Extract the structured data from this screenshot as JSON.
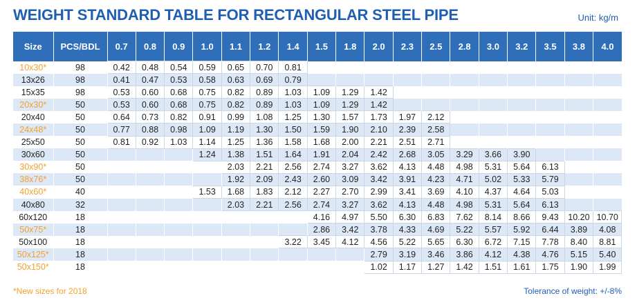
{
  "title": "WEIGHT STANDARD TABLE FOR RECTANGULAR STEEL PIPE",
  "unit": "Unit: kg/m",
  "columns": [
    "Size",
    "PCS/BDL",
    "0.7",
    "0.8",
    "0.9",
    "1.0",
    "1.1",
    "1.2",
    "1.4",
    "1.5",
    "1.8",
    "2.0",
    "2.3",
    "2.5",
    "2.8",
    "3.0",
    "3.2",
    "3.5",
    "3.8",
    "4.0"
  ],
  "rows": [
    {
      "size": "10x30*",
      "new": true,
      "pcs": "98",
      "w": [
        "0.42",
        "0.48",
        "0.54",
        "0.59",
        "0.65",
        "0.70",
        "0.81",
        "",
        "",
        "",
        "",
        "",
        "",
        "",
        "",
        "",
        "",
        ""
      ]
    },
    {
      "size": "13x26",
      "new": false,
      "pcs": "98",
      "w": [
        "0.41",
        "0.47",
        "0.53",
        "0.58",
        "0.63",
        "0.69",
        "0.79",
        "",
        "",
        "",
        "",
        "",
        "",
        "",
        "",
        "",
        "",
        ""
      ]
    },
    {
      "size": "15x35",
      "new": false,
      "pcs": "98",
      "w": [
        "0.53",
        "0.60",
        "0.68",
        "0.75",
        "0.82",
        "0.89",
        "1.03",
        "1.09",
        "1.29",
        "1.42",
        "",
        "",
        "",
        "",
        "",
        "",
        "",
        ""
      ]
    },
    {
      "size": "20x30*",
      "new": true,
      "pcs": "50",
      "w": [
        "0.53",
        "0.60",
        "0.68",
        "0.75",
        "0.82",
        "0.89",
        "1.03",
        "1.09",
        "1.29",
        "1.42",
        "",
        "",
        "",
        "",
        "",
        "",
        "",
        ""
      ]
    },
    {
      "size": "20x40",
      "new": false,
      "pcs": "50",
      "w": [
        "0.64",
        "0.73",
        "0.82",
        "0.91",
        "0.99",
        "1.08",
        "1.25",
        "1.30",
        "1.57",
        "1.73",
        "1.97",
        "2.12",
        "",
        "",
        "",
        "",
        "",
        ""
      ]
    },
    {
      "size": "24x48*",
      "new": true,
      "pcs": "50",
      "w": [
        "0.77",
        "0.88",
        "0.98",
        "1.09",
        "1.19",
        "1.30",
        "1.50",
        "1.59",
        "1.90",
        "2.10",
        "2.39",
        "2.58",
        "",
        "",
        "",
        "",
        "",
        ""
      ]
    },
    {
      "size": "25x50",
      "new": false,
      "pcs": "50",
      "w": [
        "0.81",
        "0.92",
        "1.03",
        "1.14",
        "1.25",
        "1.36",
        "1.58",
        "1.68",
        "2.00",
        "2.21",
        "2.51",
        "2.71",
        "",
        "",
        "",
        "",
        "",
        ""
      ]
    },
    {
      "size": "30x60",
      "new": false,
      "pcs": "50",
      "w": [
        "",
        "",
        "",
        "1.24",
        "1.38",
        "1.51",
        "1.64",
        "1.91",
        "2.04",
        "2.42",
        "2.68",
        "3.05",
        "3.29",
        "3.66",
        "3.90",
        "",
        "",
        ""
      ]
    },
    {
      "size": "30x90*",
      "new": true,
      "pcs": "50",
      "w": [
        "",
        "",
        "",
        "",
        "2.03",
        "2.21",
        "2.56",
        "2.74",
        "3.27",
        "3.62",
        "4.13",
        "4.48",
        "4.98",
        "5.31",
        "5.64",
        "6.13",
        "",
        ""
      ]
    },
    {
      "size": "38x76*",
      "new": true,
      "pcs": "50",
      "w": [
        "",
        "",
        "",
        "",
        "1.92",
        "2.09",
        "2.43",
        "2.60",
        "3.09",
        "3.42",
        "3.91",
        "4.23",
        "4.71",
        "5.02",
        "5.33",
        "5.79",
        "",
        ""
      ]
    },
    {
      "size": "40x60*",
      "new": true,
      "pcs": "40",
      "w": [
        "",
        "",
        "",
        "1.53",
        "1.68",
        "1.83",
        "2.12",
        "2.27",
        "2.70",
        "2.99",
        "3.41",
        "3.69",
        "4.10",
        "4.37",
        "4.64",
        "5.03",
        "",
        ""
      ]
    },
    {
      "size": "40x80",
      "new": false,
      "pcs": "32",
      "w": [
        "",
        "",
        "",
        "",
        "2.03",
        "2.21",
        "2.56",
        "2.74",
        "3.27",
        "3.62",
        "4.13",
        "4.48",
        "4.98",
        "5.31",
        "5.64",
        "6.13",
        "",
        ""
      ]
    },
    {
      "size": "60x120",
      "new": false,
      "pcs": "18",
      "w": [
        "",
        "",
        "",
        "",
        "",
        "",
        "",
        "4.16",
        "4.97",
        "5.50",
        "6.30",
        "6.83",
        "7.62",
        "8.14",
        "8.66",
        "9.43",
        "10.20",
        "10.70"
      ]
    },
    {
      "size": "50x75*",
      "new": true,
      "pcs": "18",
      "w": [
        "",
        "",
        "",
        "",
        "",
        "",
        "",
        "2.86",
        "3.42",
        "3.78",
        "4.33",
        "4.69",
        "5.22",
        "5.57",
        "5.92",
        "6.44",
        "3.89",
        "4.08"
      ]
    },
    {
      "size": "50x100",
      "new": false,
      "pcs": "18",
      "w": [
        "",
        "",
        "",
        "",
        "",
        "",
        "3.22",
        "3.45",
        "4.12",
        "4.56",
        "5.22",
        "5.65",
        "6.30",
        "6.72",
        "7.15",
        "7.78",
        "8.40",
        "8.81"
      ]
    },
    {
      "size": "50x125*",
      "new": true,
      "pcs": "18",
      "w": [
        "",
        "",
        "",
        "",
        "",
        "",
        "",
        "",
        "",
        "2.79",
        "3.19",
        "3.46",
        "3.86",
        "4.12",
        "4.38",
        "4.76",
        "5.15",
        "5.40"
      ]
    },
    {
      "size": "50x150*",
      "new": true,
      "pcs": "18",
      "w": [
        "",
        "",
        "",
        "",
        "",
        "",
        "",
        "",
        "",
        "1.02",
        "1.17",
        "1.27",
        "1.42",
        "1.51",
        "1.61",
        "1.75",
        "1.90",
        "1.99"
      ]
    }
  ],
  "footnote": "*New sizes for 2018",
  "tolerance": "Tolerance of weight: +/-8%",
  "colors": {
    "header_bg": "#2f6eb9",
    "title": "#1f5fb2",
    "new_size": "#f2a12e",
    "stripe": "#dce8f5"
  }
}
